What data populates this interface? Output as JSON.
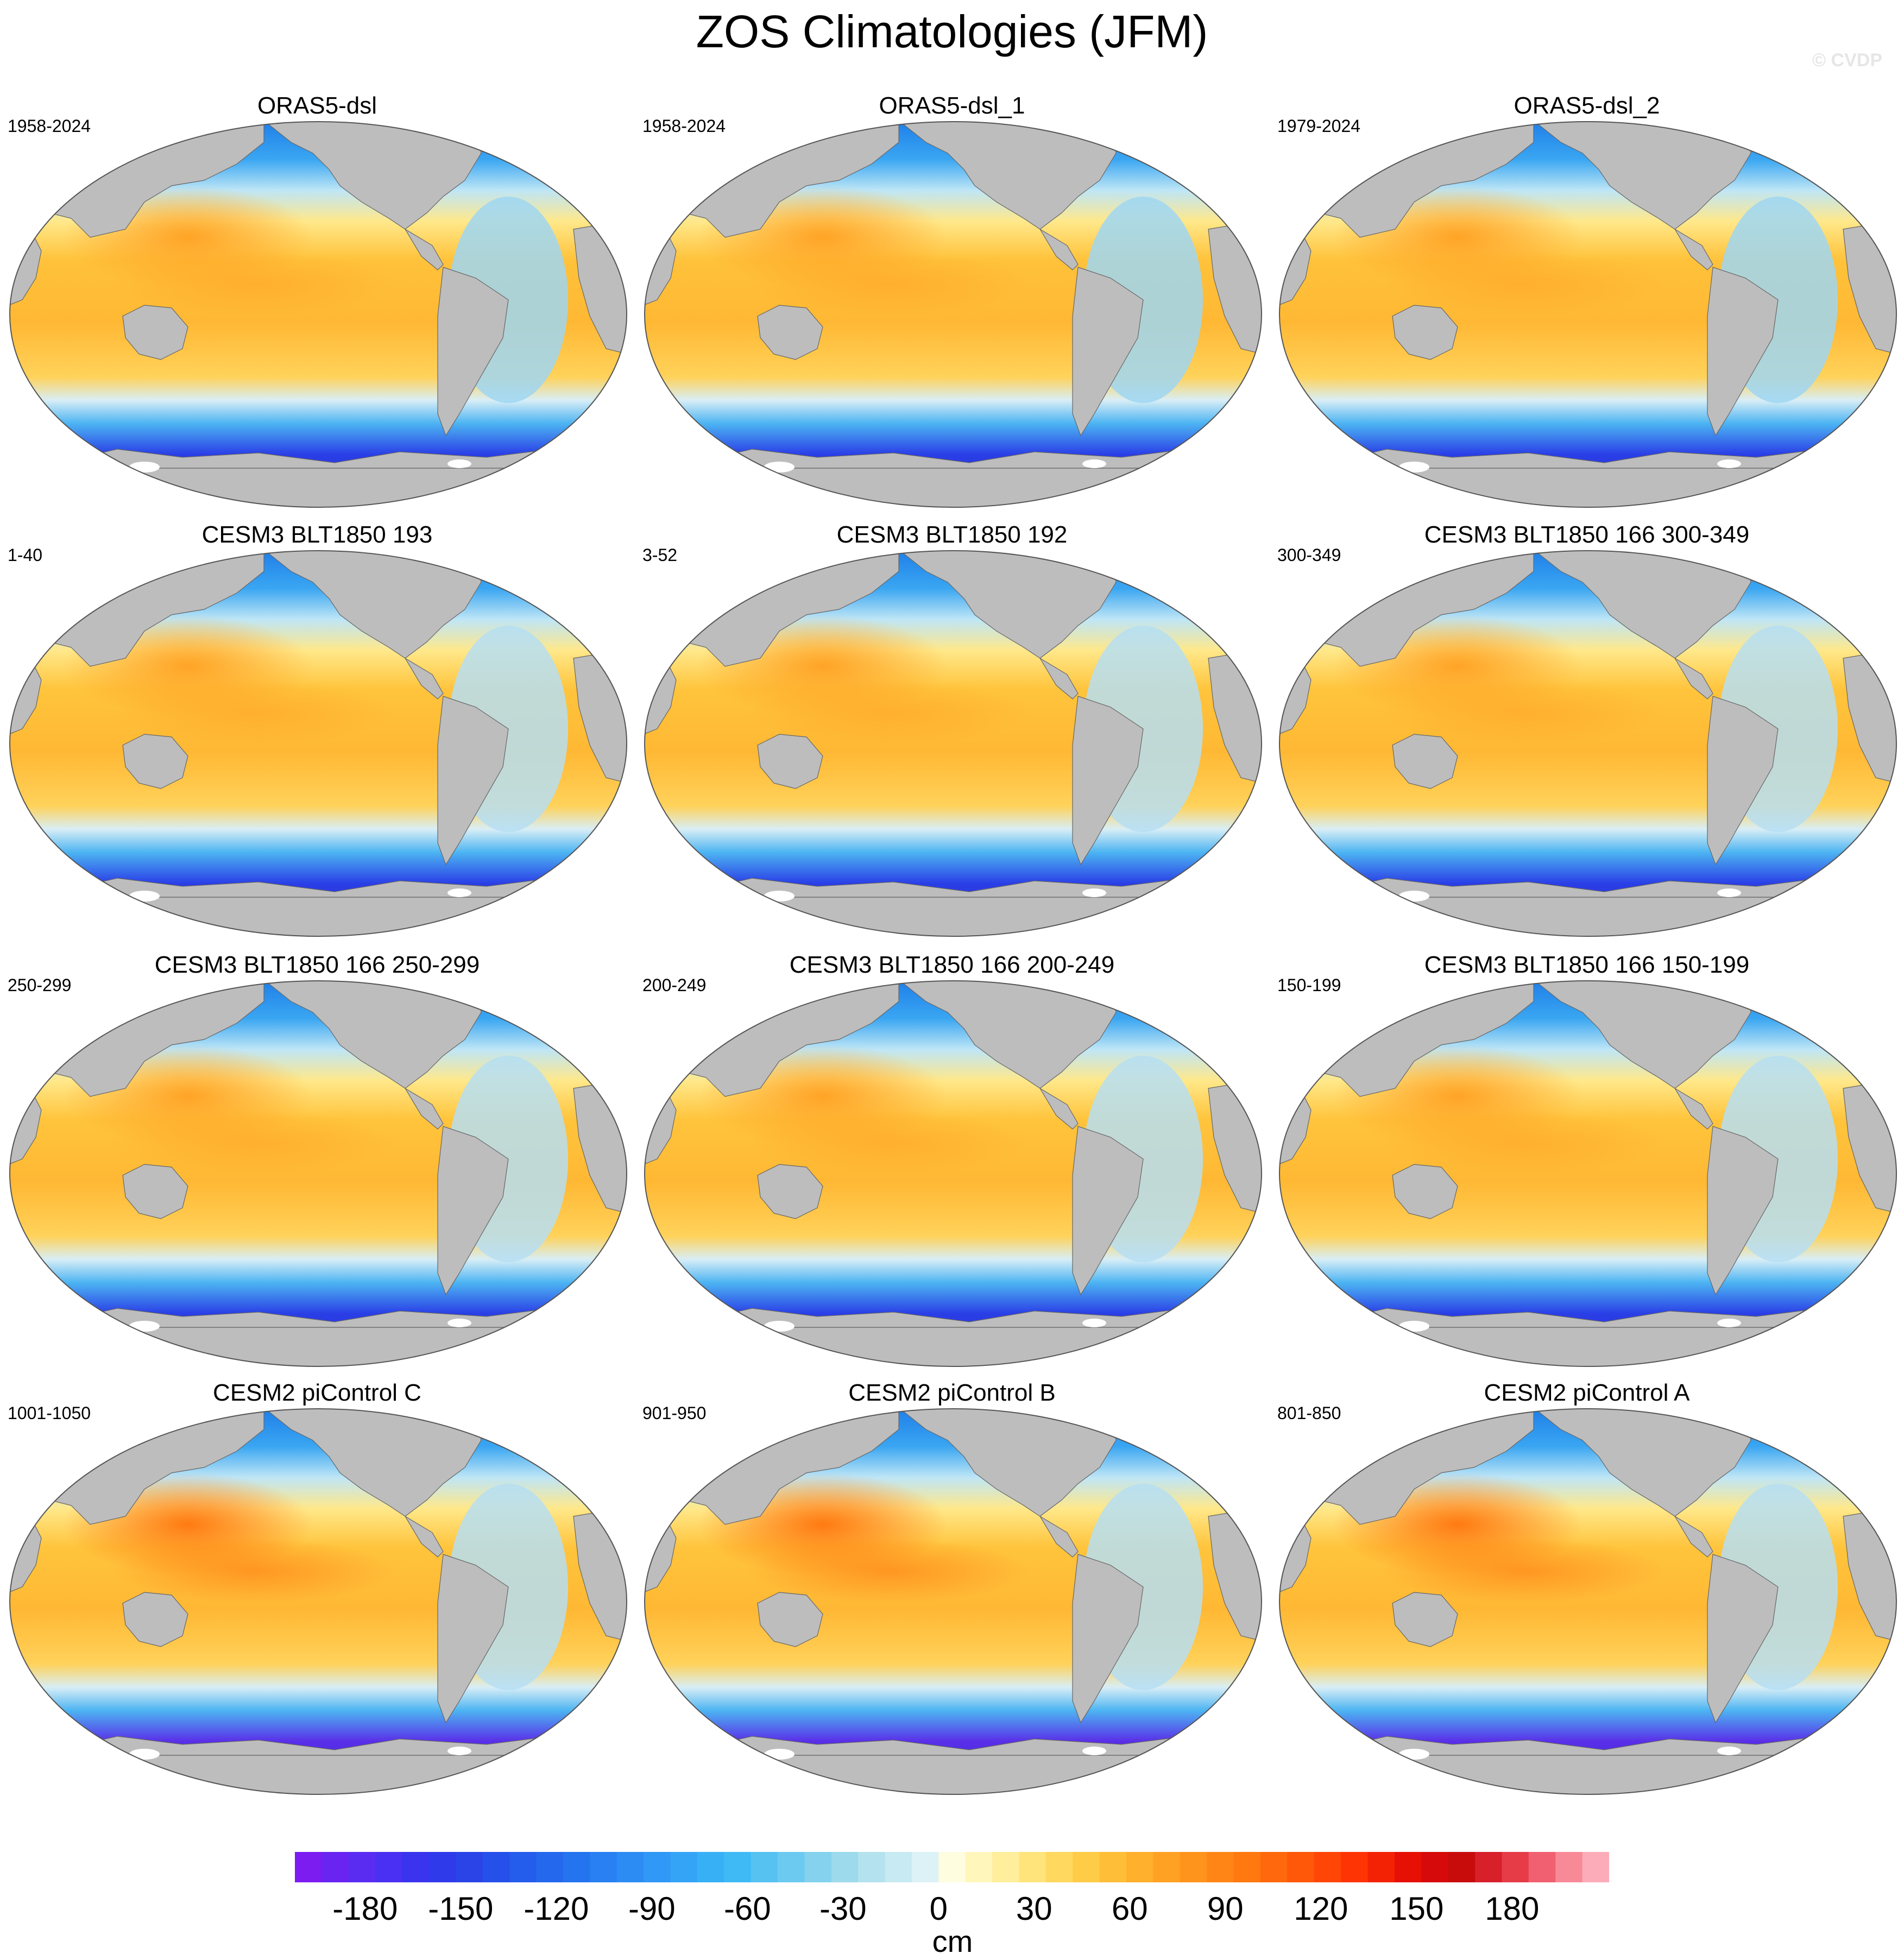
{
  "title": "ZOS Climatologies (JFM)",
  "watermark": "© CVDP",
  "panels": [
    {
      "title": "ORAS5-dsl",
      "period": "1958-2024",
      "variant": "obs"
    },
    {
      "title": "ORAS5-dsl_1",
      "period": "1958-2024",
      "variant": "obs"
    },
    {
      "title": "ORAS5-dsl_2",
      "period": "1979-2024",
      "variant": "obs"
    },
    {
      "title": "CESM3 BLT1850 193",
      "period": "1-40",
      "variant": "cesm3"
    },
    {
      "title": "CESM3 BLT1850 192",
      "period": "3-52",
      "variant": "cesm3"
    },
    {
      "title": "CESM3 BLT1850 166 300-349",
      "period": "300-349",
      "variant": "cesm3"
    },
    {
      "title": "CESM3 BLT1850 166 250-299",
      "period": "250-299",
      "variant": "cesm3"
    },
    {
      "title": "CESM3 BLT1850 166 200-249",
      "period": "200-249",
      "variant": "cesm3"
    },
    {
      "title": "CESM3 BLT1850 166 150-199",
      "period": "150-199",
      "variant": "cesm3"
    },
    {
      "title": "CESM2 piControl C",
      "period": "1001-1050",
      "variant": "cesm2"
    },
    {
      "title": "CESM2 piControl B",
      "period": "901-950",
      "variant": "cesm2"
    },
    {
      "title": "CESM2 piControl A",
      "period": "801-850",
      "variant": "cesm2"
    }
  ],
  "colorbar": {
    "labels": [
      "-180",
      "-150",
      "-120",
      "-90",
      "-60",
      "-30",
      "0",
      "30",
      "60",
      "90",
      "120",
      "150",
      "180"
    ],
    "units": "cm",
    "colors": [
      "#7c1cf0",
      "#6a24f2",
      "#5a2cf2",
      "#4a30f2",
      "#3a34ee",
      "#2f3aea",
      "#2a44e8",
      "#2650ea",
      "#245cec",
      "#2468ee",
      "#2474f0",
      "#2880f2",
      "#2c8cf4",
      "#3098f6",
      "#34a4f6",
      "#38b0f6",
      "#40baf4",
      "#56c2f2",
      "#6ccaf0",
      "#84d2ee",
      "#9cdaec",
      "#b4e2ee",
      "#c8eaf2",
      "#dcf2f6",
      "#fffde0",
      "#fff6bc",
      "#ffee9c",
      "#ffe47c",
      "#ffd860",
      "#ffcc48",
      "#ffbe38",
      "#ffb02c",
      "#ffa224",
      "#ff941c",
      "#ff8616",
      "#ff7810",
      "#ff680c",
      "#ff5808",
      "#ff4606",
      "#ff3404",
      "#f42204",
      "#e61004",
      "#d60a0a",
      "#c80c0c",
      "#d8202a",
      "#e63c48",
      "#f06070",
      "#f88a98",
      "#fcacb8"
    ]
  }
}
